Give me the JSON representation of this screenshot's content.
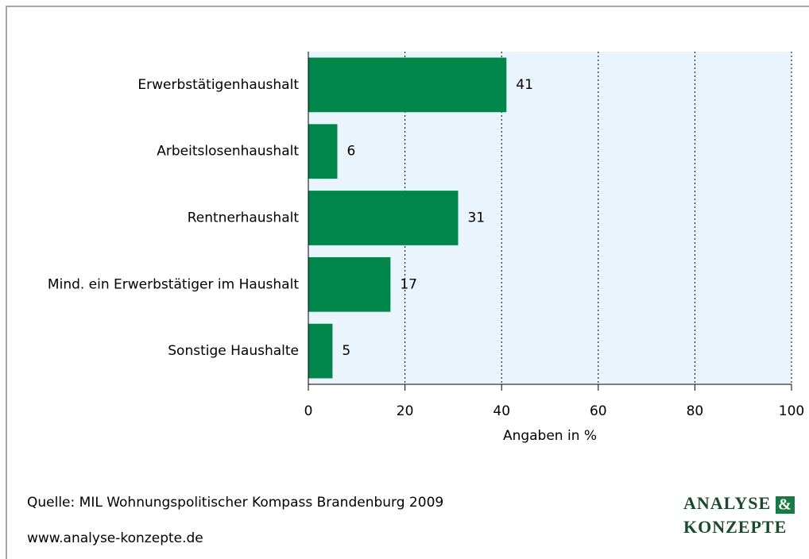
{
  "chart_data": {
    "type": "bar",
    "orientation": "horizontal",
    "categories": [
      "Erwerbstätigenhaushalt",
      "Arbeitslosenhaushalt",
      "Rentnerhaushalt",
      "Mind. ein Erwerbstätiger im Haushalt",
      "Sonstige Haushalte"
    ],
    "values": [
      41,
      6,
      31,
      17,
      5
    ],
    "color": "#00864b",
    "xlim": [
      0,
      100
    ],
    "xticks": [
      0,
      20,
      40,
      60,
      80,
      100
    ],
    "xlabel": "Angaben in %",
    "grid": true
  },
  "footer": {
    "source": "Quelle: MIL Wohnungspolitischer Kompass Brandenburg 2009",
    "url": "www.analyse-konzepte.de"
  },
  "logo": {
    "line1": "ANALYSE",
    "amp": "&",
    "line2": "KONZEPTE"
  }
}
